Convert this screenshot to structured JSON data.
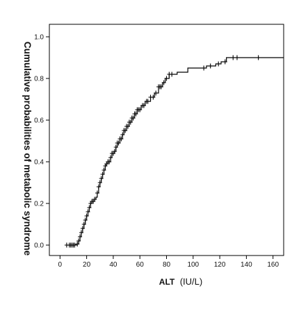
{
  "chart_data": {
    "type": "line",
    "title": "",
    "xlabel": "ALT",
    "xlabel_unit": "(IU/L)",
    "ylabel": "Cumulative probabilities of metabolic syndrome",
    "xlim": [
      -8,
      168
    ],
    "ylim": [
      -0.05,
      1.06
    ],
    "xticks": [
      0,
      20,
      40,
      60,
      80,
      100,
      120,
      140,
      160
    ],
    "yticks": [
      0.0,
      0.2,
      0.4,
      0.6,
      0.8,
      1.0
    ],
    "ytick_labels": [
      "0.0",
      "0.2",
      "0.4",
      "0.6",
      "0.8",
      "1.0"
    ],
    "grid": false,
    "line_color": "#000000",
    "series": [
      {
        "step_points": [
          [
            5,
            0.0
          ],
          [
            12,
            0.005
          ],
          [
            14,
            0.02
          ],
          [
            15,
            0.04
          ],
          [
            16,
            0.06
          ],
          [
            17,
            0.08
          ],
          [
            18,
            0.1
          ],
          [
            19,
            0.12
          ],
          [
            20,
            0.14
          ],
          [
            21,
            0.16
          ],
          [
            22,
            0.18
          ],
          [
            23,
            0.2
          ],
          [
            24,
            0.21
          ],
          [
            26,
            0.22
          ],
          [
            27,
            0.23
          ],
          [
            28,
            0.25
          ],
          [
            29,
            0.28
          ],
          [
            30,
            0.3
          ],
          [
            31,
            0.32
          ],
          [
            32,
            0.34
          ],
          [
            33,
            0.36
          ],
          [
            34,
            0.38
          ],
          [
            35,
            0.39
          ],
          [
            36,
            0.4
          ],
          [
            38,
            0.42
          ],
          [
            39,
            0.44
          ],
          [
            41,
            0.45
          ],
          [
            42,
            0.47
          ],
          [
            43,
            0.49
          ],
          [
            45,
            0.51
          ],
          [
            47,
            0.53
          ],
          [
            48,
            0.55
          ],
          [
            50,
            0.57
          ],
          [
            52,
            0.59
          ],
          [
            54,
            0.61
          ],
          [
            56,
            0.63
          ],
          [
            58,
            0.65
          ],
          [
            61,
            0.67
          ],
          [
            64,
            0.69
          ],
          [
            68,
            0.71
          ],
          [
            71,
            0.73
          ],
          [
            74,
            0.76
          ],
          [
            77,
            0.78
          ],
          [
            79,
            0.8
          ],
          [
            82,
            0.82
          ],
          [
            88,
            0.83
          ],
          [
            96,
            0.85
          ],
          [
            110,
            0.86
          ],
          [
            117,
            0.87
          ],
          [
            121,
            0.88
          ],
          [
            125,
            0.9
          ],
          [
            168,
            0.9
          ]
        ],
        "censor_x": [
          5,
          7,
          8,
          9,
          10,
          11,
          13,
          14,
          15,
          16,
          17,
          18,
          19,
          20,
          21,
          22,
          23,
          24,
          25,
          26,
          28,
          29,
          30,
          31,
          32,
          33,
          34,
          35,
          36,
          37,
          38,
          39,
          40,
          41,
          42,
          43,
          44,
          45,
          46,
          47,
          48,
          49,
          50,
          51,
          52,
          53,
          54,
          55,
          56,
          57,
          58,
          59,
          60,
          62,
          63,
          65,
          66,
          68,
          70,
          72,
          74,
          75,
          76,
          78,
          80,
          82,
          84,
          108,
          113,
          119,
          124,
          130,
          133,
          149
        ]
      }
    ]
  }
}
